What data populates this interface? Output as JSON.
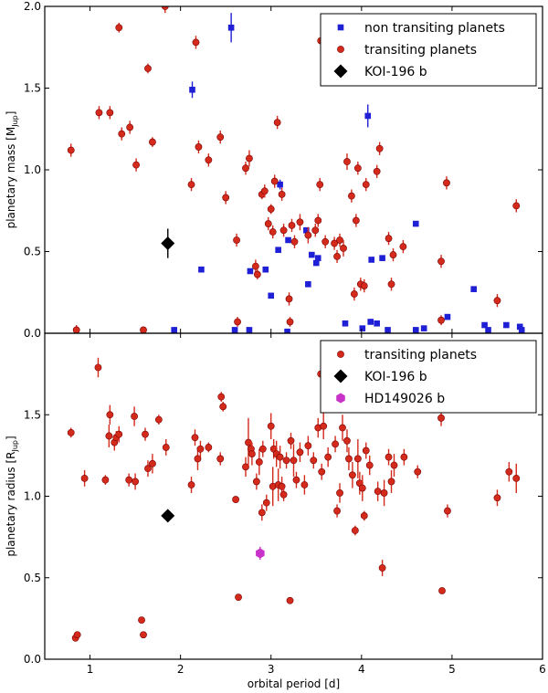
{
  "chart_data": [
    {
      "type": "scatter",
      "panel": "top",
      "xlabel": "",
      "ylabel": "planetary mass [M",
      "ylabel_sub": "Jup",
      "ylabel_close": "]",
      "xlim": [
        0.5,
        6.0
      ],
      "ylim": [
        0.0,
        2.0
      ],
      "xticks": [
        1,
        2,
        3,
        4,
        5,
        6
      ],
      "xtick_labels": [
        "",
        "",
        "",
        "",
        "",
        ""
      ],
      "yticks": [
        0.0,
        0.5,
        1.0,
        1.5,
        2.0
      ],
      "ytick_labels": [
        "0.0",
        "0.5",
        "1.0",
        "1.5",
        "2.0"
      ],
      "legend_position": "top-right",
      "legend": [
        "non transiting planets",
        "transiting planets",
        "KOI-196 b"
      ],
      "series": [
        {
          "name": "non transiting planets",
          "marker": "square",
          "color": "#1f1fd6",
          "points": [
            [
              2.56,
              1.87,
              0.09
            ],
            [
              2.13,
              1.49,
              0.05
            ],
            [
              4.07,
              1.33,
              0.07
            ],
            [
              2.23,
              0.39,
              0.0
            ],
            [
              2.77,
              0.38,
              0.0
            ],
            [
              2.94,
              0.39,
              0.0
            ],
            [
              3.0,
              0.23,
              0.0
            ],
            [
              3.08,
              0.51,
              0.0
            ],
            [
              3.1,
              0.91,
              0.03
            ],
            [
              3.19,
              0.57,
              0.0
            ],
            [
              3.39,
              0.63,
              0.0
            ],
            [
              3.41,
              0.3,
              0.0
            ],
            [
              3.45,
              0.48,
              0.0
            ],
            [
              3.5,
              0.43,
              0.0
            ],
            [
              3.52,
              0.46,
              0.0
            ],
            [
              3.82,
              0.06,
              0.0
            ],
            [
              4.01,
              0.03,
              0.0
            ],
            [
              4.1,
              0.07,
              0.0
            ],
            [
              4.11,
              0.45,
              0.0
            ],
            [
              4.17,
              0.06,
              0.0
            ],
            [
              4.23,
              0.46,
              0.0
            ],
            [
              4.29,
              0.02,
              0.0
            ],
            [
              4.6,
              0.67,
              0.0
            ],
            [
              4.6,
              0.02,
              0.0
            ],
            [
              4.69,
              0.03,
              0.0
            ],
            [
              4.95,
              0.1,
              0.0
            ],
            [
              5.24,
              0.27,
              0.0
            ],
            [
              5.36,
              0.05,
              0.0
            ],
            [
              5.4,
              0.02,
              0.0
            ],
            [
              5.6,
              0.05,
              0.0
            ],
            [
              5.75,
              0.04,
              0.0
            ],
            [
              5.77,
              0.02,
              0.0
            ],
            [
              1.93,
              0.02,
              0.0
            ],
            [
              2.6,
              0.02,
              0.0
            ],
            [
              2.76,
              0.02,
              0.0
            ],
            [
              3.18,
              0.01,
              0.0
            ]
          ]
        },
        {
          "name": "transiting planets",
          "marker": "circle",
          "color": "#d42a1c",
          "points": [
            [
              0.79,
              1.12,
              0.04
            ],
            [
              0.85,
              0.02,
              0.03
            ],
            [
              1.1,
              1.35,
              0.04
            ],
            [
              1.22,
              1.35,
              0.04
            ],
            [
              1.32,
              1.87,
              0.03
            ],
            [
              1.35,
              1.22,
              0.04
            ],
            [
              1.44,
              1.26,
              0.04
            ],
            [
              1.51,
              1.03,
              0.04
            ],
            [
              1.59,
              0.02,
              0.02
            ],
            [
              1.64,
              1.62,
              0.03
            ],
            [
              1.69,
              1.17,
              0.03
            ],
            [
              1.83,
              2.0,
              0.04
            ],
            [
              2.12,
              0.91,
              0.04
            ],
            [
              2.17,
              1.78,
              0.04
            ],
            [
              2.2,
              1.14,
              0.04
            ],
            [
              2.31,
              1.06,
              0.04
            ],
            [
              2.44,
              1.2,
              0.04
            ],
            [
              2.5,
              0.83,
              0.04
            ],
            [
              2.62,
              0.57,
              0.04
            ],
            [
              2.63,
              0.07,
              0.03
            ],
            [
              2.72,
              1.01,
              0.04
            ],
            [
              2.76,
              1.07,
              0.05
            ],
            [
              2.83,
              0.41,
              0.04
            ],
            [
              2.85,
              0.36,
              0.03
            ],
            [
              2.9,
              0.85,
              0.03
            ],
            [
              2.93,
              0.87,
              0.04
            ],
            [
              2.97,
              0.67,
              0.04
            ],
            [
              3.0,
              0.76,
              0.03
            ],
            [
              3.02,
              0.62,
              0.04
            ],
            [
              3.04,
              0.93,
              0.04
            ],
            [
              3.07,
              1.29,
              0.04
            ],
            [
              3.12,
              0.85,
              0.04
            ],
            [
              3.14,
              0.63,
              0.04
            ],
            [
              3.2,
              0.21,
              0.04
            ],
            [
              3.21,
              0.07,
              0.03
            ],
            [
              3.23,
              0.66,
              0.04
            ],
            [
              3.26,
              0.56,
              0.04
            ],
            [
              3.32,
              0.68,
              0.05
            ],
            [
              3.41,
              0.6,
              0.05
            ],
            [
              3.49,
              0.63,
              0.04
            ],
            [
              3.52,
              0.69,
              0.04
            ],
            [
              3.54,
              0.91,
              0.04
            ],
            [
              3.55,
              1.79,
              0.04
            ],
            [
              3.6,
              0.56,
              0.04
            ],
            [
              3.7,
              0.55,
              0.04
            ],
            [
              3.73,
              0.47,
              0.04
            ],
            [
              3.76,
              0.57,
              0.04
            ],
            [
              3.8,
              0.52,
              0.05
            ],
            [
              3.84,
              1.05,
              0.05
            ],
            [
              3.89,
              0.84,
              0.04
            ],
            [
              3.92,
              0.24,
              0.04
            ],
            [
              3.94,
              0.69,
              0.04
            ],
            [
              3.96,
              1.01,
              0.04
            ],
            [
              3.99,
              0.3,
              0.04
            ],
            [
              4.03,
              0.29,
              0.04
            ],
            [
              4.05,
              0.91,
              0.04
            ],
            [
              4.17,
              0.99,
              0.04
            ],
            [
              4.2,
              1.13,
              0.04
            ],
            [
              4.3,
              0.58,
              0.04
            ],
            [
              4.33,
              0.3,
              0.04
            ],
            [
              4.35,
              0.48,
              0.04
            ],
            [
              4.46,
              0.53,
              0.04
            ],
            [
              4.88,
              0.44,
              0.04
            ],
            [
              4.88,
              0.08,
              0.03
            ],
            [
              4.94,
              0.92,
              0.04
            ],
            [
              5.5,
              0.2,
              0.04
            ],
            [
              5.71,
              0.78,
              0.04
            ]
          ]
        },
        {
          "name": "KOI-196 b",
          "marker": "diamond",
          "color": "#000000",
          "points": [
            [
              1.86,
              0.55,
              0.09
            ]
          ]
        }
      ]
    },
    {
      "type": "scatter",
      "panel": "bottom",
      "xlabel": "orbital period [d]",
      "ylabel": "planetary radius [R",
      "ylabel_sub": "Jup",
      "ylabel_close": "]",
      "xlim": [
        0.5,
        6.0
      ],
      "ylim": [
        0.0,
        2.0
      ],
      "xticks": [
        1,
        2,
        3,
        4,
        5,
        6
      ],
      "xtick_labels": [
        "1",
        "2",
        "3",
        "4",
        "5",
        "6"
      ],
      "yticks": [
        0.0,
        0.5,
        1.0,
        1.5
      ],
      "ytick_labels": [
        "0.0",
        "0.5",
        "1.0",
        "1.5"
      ],
      "legend_position": "top-right",
      "legend": [
        "transiting planets",
        "KOI-196 b",
        "HD149026 b"
      ],
      "series": [
        {
          "name": "transiting planets",
          "marker": "circle",
          "color": "#d42a1c",
          "points": [
            [
              0.79,
              1.39,
              0.03
            ],
            [
              0.84,
              0.13,
              0.0
            ],
            [
              0.86,
              0.15,
              0.0
            ],
            [
              0.94,
              1.11,
              0.05
            ],
            [
              1.09,
              1.79,
              0.06
            ],
            [
              1.17,
              1.1,
              0.03
            ],
            [
              1.21,
              1.37,
              0.07
            ],
            [
              1.22,
              1.5,
              0.06
            ],
            [
              1.27,
              1.33,
              0.05
            ],
            [
              1.29,
              1.36,
              0.04
            ],
            [
              1.32,
              1.38,
              0.05
            ],
            [
              1.43,
              1.1,
              0.04
            ],
            [
              1.49,
              1.49,
              0.06
            ],
            [
              1.5,
              1.09,
              0.05
            ],
            [
              1.57,
              0.24,
              0.0
            ],
            [
              1.59,
              0.15,
              0.0
            ],
            [
              1.61,
              1.38,
              0.04
            ],
            [
              1.64,
              1.17,
              0.05
            ],
            [
              1.69,
              1.2,
              0.06
            ],
            [
              1.76,
              1.47,
              0.03
            ],
            [
              1.84,
              1.3,
              0.05
            ],
            [
              2.12,
              1.07,
              0.05
            ],
            [
              2.16,
              1.36,
              0.05
            ],
            [
              2.19,
              1.23,
              0.07
            ],
            [
              2.22,
              1.29,
              0.05
            ],
            [
              2.31,
              1.3,
              0.03
            ],
            [
              2.44,
              1.23,
              0.04
            ],
            [
              2.45,
              1.61,
              0.03
            ],
            [
              2.47,
              1.55,
              0.03
            ],
            [
              2.61,
              0.98,
              0.02
            ],
            [
              2.64,
              0.38,
              0.0
            ],
            [
              2.72,
              1.18,
              0.06
            ],
            [
              2.75,
              1.33,
              0.15
            ],
            [
              2.78,
              1.29,
              0.05
            ],
            [
              2.79,
              1.26,
              0.07
            ],
            [
              2.84,
              1.09,
              0.05
            ],
            [
              2.87,
              1.21,
              0.08
            ],
            [
              2.9,
              0.9,
              0.05
            ],
            [
              2.91,
              1.29,
              0.05
            ],
            [
              2.95,
              0.96,
              0.05
            ],
            [
              3.0,
              1.43,
              0.08
            ],
            [
              3.02,
              1.06,
              0.12
            ],
            [
              3.03,
              1.29,
              0.06
            ],
            [
              3.06,
              1.26,
              0.08
            ],
            [
              3.08,
              1.07,
              0.1
            ],
            [
              3.1,
              1.24,
              0.07
            ],
            [
              3.12,
              1.06,
              0.06
            ],
            [
              3.14,
              1.01,
              0.04
            ],
            [
              3.17,
              1.22,
              0.05
            ],
            [
              3.21,
              0.36,
              0.0
            ],
            [
              3.22,
              1.34,
              0.05
            ],
            [
              3.25,
              1.22,
              0.1
            ],
            [
              3.28,
              1.1,
              0.05
            ],
            [
              3.32,
              1.27,
              0.06
            ],
            [
              3.37,
              1.07,
              0.06
            ],
            [
              3.41,
              1.31,
              0.06
            ],
            [
              3.47,
              1.22,
              0.05
            ],
            [
              3.52,
              1.42,
              0.06
            ],
            [
              3.55,
              1.75,
              0.06
            ],
            [
              3.56,
              1.15,
              0.05
            ],
            [
              3.58,
              1.43,
              0.08
            ],
            [
              3.63,
              1.24,
              0.06
            ],
            [
              3.71,
              1.32,
              0.05
            ],
            [
              3.73,
              0.91,
              0.04
            ],
            [
              3.76,
              1.02,
              0.06
            ],
            [
              3.79,
              1.42,
              0.08
            ],
            [
              3.84,
              1.34,
              0.07
            ],
            [
              3.86,
              1.23,
              0.07
            ],
            [
              3.9,
              1.13,
              0.08
            ],
            [
              3.93,
              0.79,
              0.03
            ],
            [
              3.96,
              1.23,
              0.12
            ],
            [
              3.98,
              1.08,
              0.07
            ],
            [
              4.01,
              1.05,
              0.08
            ],
            [
              4.03,
              0.88,
              0.03
            ],
            [
              4.05,
              1.28,
              0.05
            ],
            [
              4.09,
              1.19,
              0.06
            ],
            [
              4.18,
              1.03,
              0.06
            ],
            [
              4.23,
              0.56,
              0.05
            ],
            [
              4.25,
              1.02,
              0.08
            ],
            [
              4.3,
              1.24,
              0.05
            ],
            [
              4.33,
              1.09,
              0.07
            ],
            [
              4.36,
              1.19,
              0.07
            ],
            [
              4.47,
              1.24,
              0.05
            ],
            [
              4.62,
              1.15,
              0.04
            ],
            [
              4.88,
              1.48,
              0.05
            ],
            [
              4.89,
              0.42,
              0.0
            ],
            [
              4.95,
              0.91,
              0.04
            ],
            [
              5.5,
              0.99,
              0.05
            ],
            [
              5.63,
              1.15,
              0.06
            ],
            [
              5.71,
              1.11,
              0.09
            ]
          ]
        },
        {
          "name": "KOI-196 b",
          "marker": "diamond",
          "color": "#000000",
          "points": [
            [
              1.86,
              0.88,
              0.0
            ]
          ]
        },
        {
          "name": "HD149026 b",
          "marker": "hexagon",
          "color": "#c832c8",
          "points": [
            [
              2.88,
              0.65,
              0.04
            ]
          ]
        }
      ]
    }
  ]
}
